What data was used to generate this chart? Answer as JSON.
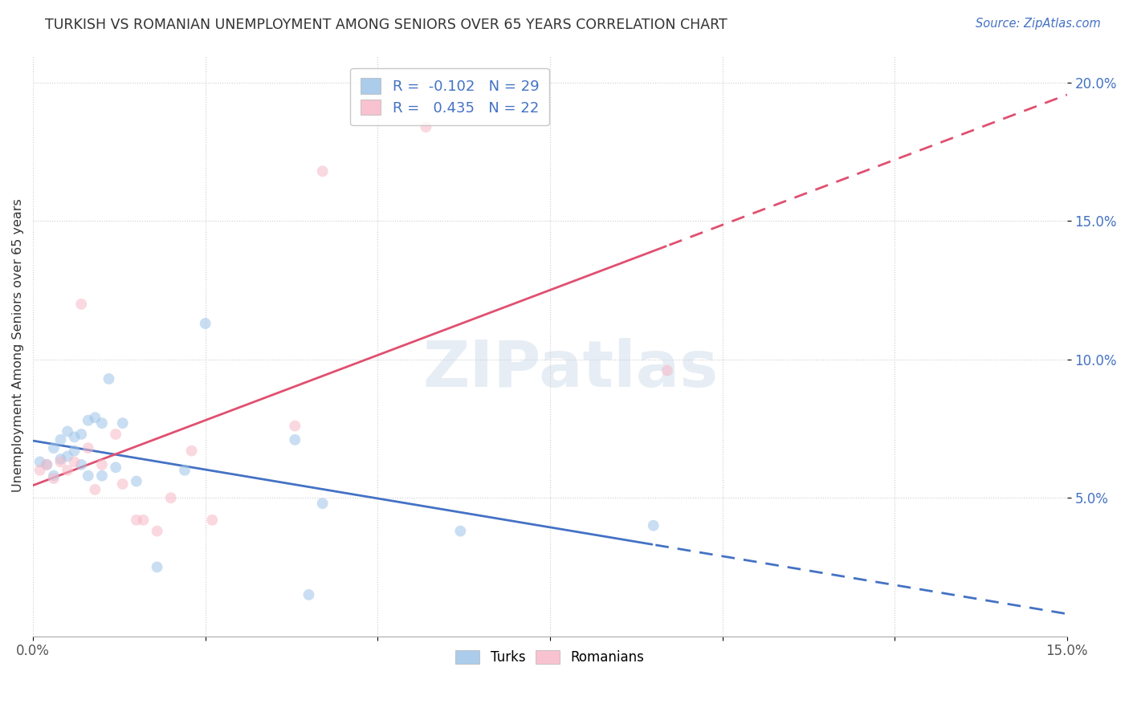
{
  "title": "TURKISH VS ROMANIAN UNEMPLOYMENT AMONG SENIORS OVER 65 YEARS CORRELATION CHART",
  "source": "Source: ZipAtlas.com",
  "xlabel": "",
  "ylabel": "Unemployment Among Seniors over 65 years",
  "xlim": [
    0.0,
    0.15
  ],
  "ylim": [
    0.0,
    0.21
  ],
  "xticks": [
    0.0,
    0.025,
    0.05,
    0.075,
    0.1,
    0.125,
    0.15
  ],
  "yticks": [
    0.05,
    0.1,
    0.15,
    0.2
  ],
  "ytick_labels": [
    "5.0%",
    "10.0%",
    "15.0%",
    "20.0%"
  ],
  "xtick_labels": [
    "0.0%",
    "",
    "",
    "",
    "",
    "",
    "15.0%"
  ],
  "turks_color": "#9ec4e8",
  "romanians_color": "#f7b8c8",
  "trend_turks_color": "#4472c4",
  "trend_romanians_color": "#e05070",
  "R_turks": -0.102,
  "N_turks": 29,
  "R_romanians": 0.435,
  "N_romanians": 22,
  "turks_x": [
    0.001,
    0.002,
    0.003,
    0.003,
    0.004,
    0.004,
    0.005,
    0.005,
    0.006,
    0.006,
    0.007,
    0.007,
    0.008,
    0.008,
    0.009,
    0.01,
    0.01,
    0.011,
    0.012,
    0.013,
    0.015,
    0.018,
    0.022,
    0.025,
    0.038,
    0.04,
    0.042,
    0.062,
    0.09
  ],
  "turks_y": [
    0.063,
    0.062,
    0.058,
    0.068,
    0.064,
    0.071,
    0.065,
    0.074,
    0.067,
    0.072,
    0.073,
    0.062,
    0.058,
    0.078,
    0.079,
    0.058,
    0.077,
    0.093,
    0.061,
    0.077,
    0.056,
    0.025,
    0.06,
    0.113,
    0.071,
    0.015,
    0.048,
    0.038,
    0.04
  ],
  "romanians_x": [
    0.001,
    0.002,
    0.003,
    0.004,
    0.005,
    0.006,
    0.007,
    0.008,
    0.009,
    0.01,
    0.012,
    0.013,
    0.015,
    0.016,
    0.018,
    0.02,
    0.023,
    0.026,
    0.038,
    0.042,
    0.057,
    0.092
  ],
  "romanians_y": [
    0.06,
    0.062,
    0.057,
    0.063,
    0.06,
    0.063,
    0.12,
    0.068,
    0.053,
    0.062,
    0.073,
    0.055,
    0.042,
    0.042,
    0.038,
    0.05,
    0.067,
    0.042,
    0.076,
    0.168,
    0.184,
    0.096
  ],
  "watermark": "ZIPatlas",
  "background_color": "#ffffff",
  "scatter_size": 100,
  "scatter_alpha": 0.55,
  "grid_color": "#cccccc"
}
